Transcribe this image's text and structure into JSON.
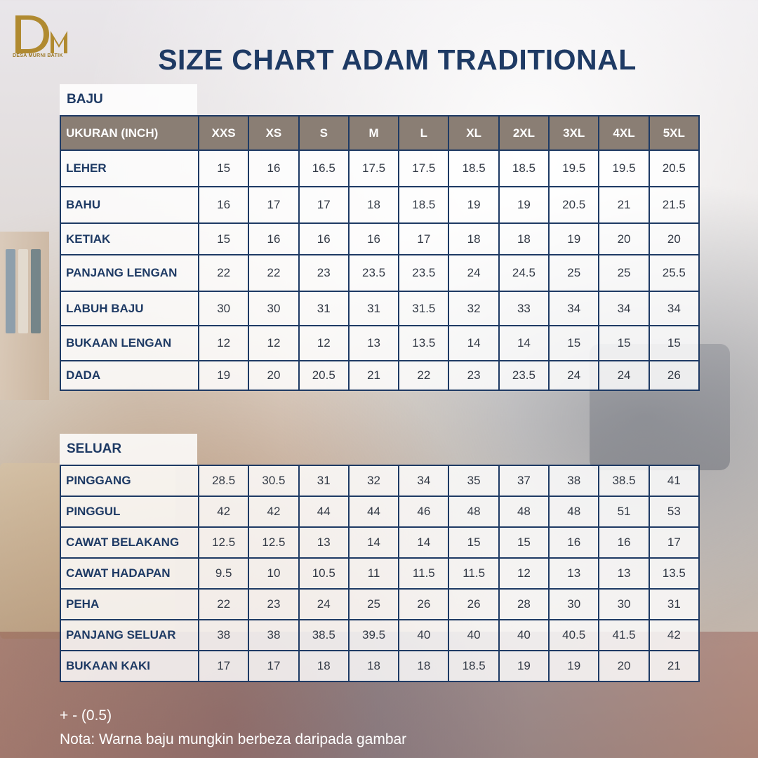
{
  "brand": {
    "name": "DESA MURNI BATIK",
    "logo_letters": "DM",
    "color": "#9c7a2a"
  },
  "title": "SIZE CHART ADAM TRADITIONAL",
  "colors": {
    "navy": "#1e3a64",
    "header_bg": "#8a7e74"
  },
  "baju": {
    "label": "BAJU",
    "header": [
      "UKURAN (INCH)",
      "XXS",
      "XS",
      "S",
      "M",
      "L",
      "XL",
      "2XL",
      "3XL",
      "4XL",
      "5XL"
    ],
    "rows": [
      [
        "LEHER",
        "15",
        "16",
        "16.5",
        "17.5",
        "17.5",
        "18.5",
        "18.5",
        "19.5",
        "19.5",
        "20.5"
      ],
      [
        "BAHU",
        "16",
        "17",
        "17",
        "18",
        "18.5",
        "19",
        "19",
        "20.5",
        "21",
        "21.5"
      ],
      [
        "KETIAK",
        "15",
        "16",
        "16",
        "16",
        "17",
        "18",
        "18",
        "19",
        "20",
        "20"
      ],
      [
        "PANJANG LENGAN",
        "22",
        "22",
        "23",
        "23.5",
        "23.5",
        "24",
        "24.5",
        "25",
        "25",
        "25.5"
      ],
      [
        "LABUH BAJU",
        "30",
        "30",
        "31",
        "31",
        "31.5",
        "32",
        "33",
        "34",
        "34",
        "34"
      ],
      [
        "BUKAAN LENGAN",
        "12",
        "12",
        "12",
        "13",
        "13.5",
        "14",
        "14",
        "15",
        "15",
        "15"
      ],
      [
        "DADA",
        "19",
        "20",
        "20.5",
        "21",
        "22",
        "23",
        "23.5",
        "24",
        "24",
        "26"
      ]
    ]
  },
  "seluar": {
    "label": "SELUAR",
    "rows": [
      [
        "PINGGANG",
        "28.5",
        "30.5",
        "31",
        "32",
        "34",
        "35",
        "37",
        "38",
        "38.5",
        "41"
      ],
      [
        "PINGGUL",
        "42",
        "42",
        "44",
        "44",
        "46",
        "48",
        "48",
        "48",
        "51",
        "53"
      ],
      [
        "CAWAT BELAKANG",
        "12.5",
        "12.5",
        "13",
        "14",
        "14",
        "15",
        "15",
        "16",
        "16",
        "17"
      ],
      [
        "CAWAT HADAPAN",
        "9.5",
        "10",
        "10.5",
        "11",
        "11.5",
        "11.5",
        "12",
        "13",
        "13",
        "13.5"
      ],
      [
        "PEHA",
        "22",
        "23",
        "24",
        "25",
        "26",
        "26",
        "28",
        "30",
        "30",
        "31"
      ],
      [
        "PANJANG SELUAR",
        "38",
        "38",
        "38.5",
        "39.5",
        "40",
        "40",
        "40",
        "40.5",
        "41.5",
        "42"
      ],
      [
        "BUKAAN KAKI",
        "17",
        "17",
        "18",
        "18",
        "18",
        "18.5",
        "19",
        "19",
        "20",
        "21"
      ]
    ]
  },
  "notes": {
    "tolerance": "+ - (0.5)",
    "disclaimer": "Nota: Warna baju mungkin berbeza daripada gambar"
  }
}
